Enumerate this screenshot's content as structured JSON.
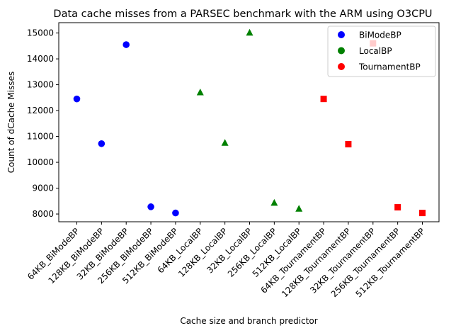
{
  "chart_data": {
    "type": "scatter",
    "title": "Data cache misses from a PARSEC benchmark with the ARM using O3CPU",
    "xlabel": "Cache size and branch predictor",
    "ylabel": "Count of dCache Misses",
    "categories": [
      "64KB_BiModeBP",
      "128KB_BiModeBP",
      "32KB_BiModeBP",
      "256KB_BiModeBP",
      "512KB_BiModeBP",
      "64KB_LocalBP",
      "128KB_LocalBP",
      "32KB_LocalBP",
      "256KB_LocalBP",
      "512KB_LocalBP",
      "64KB_TournamentBP",
      "128KB_TournamentBP",
      "32KB_TournamentBP",
      "256KB_TournamentBP",
      "512KB_TournamentBP"
    ],
    "ylim": [
      7700,
      15400
    ],
    "yticks": [
      8000,
      9000,
      10000,
      11000,
      12000,
      13000,
      14000,
      15000
    ],
    "ytick_labels": [
      "8000",
      "9000",
      "10000",
      "11000",
      "12000",
      "13000",
      "14000",
      "15000"
    ],
    "grid": false,
    "legend_position": "top-right",
    "series": [
      {
        "name": "BiModeBP",
        "color": "#0000ff",
        "marker": "circle",
        "x_index": [
          0,
          1,
          2,
          3,
          4
        ],
        "values": [
          12450,
          10720,
          14550,
          8280,
          8040
        ]
      },
      {
        "name": "LocalBP",
        "color": "#008000",
        "marker": "triangle",
        "x_index": [
          5,
          6,
          7,
          8,
          9
        ],
        "values": [
          12700,
          10750,
          15010,
          8430,
          8200
        ]
      },
      {
        "name": "TournamentBP",
        "color": "#ff0000",
        "marker": "square",
        "x_index": [
          10,
          11,
          12,
          13,
          14
        ],
        "values": [
          12450,
          10700,
          14600,
          8260,
          8040
        ]
      }
    ]
  }
}
